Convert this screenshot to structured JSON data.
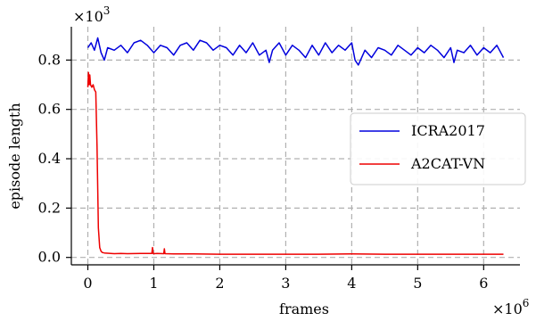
{
  "chart_data": {
    "type": "line",
    "xlabel": "frames",
    "ylabel": "episode length",
    "x_multiplier": "×10",
    "x_exponent": "6",
    "y_multiplier": "×10",
    "y_exponent": "3",
    "xlim": [
      -0.25,
      6.55
    ],
    "ylim": [
      -0.03,
      0.935
    ],
    "x_ticks": [
      0,
      1,
      2,
      3,
      4,
      5,
      6
    ],
    "y_ticks": [
      0.0,
      0.2,
      0.4,
      0.6,
      0.8
    ],
    "x_tick_labels": [
      "0",
      "1",
      "2",
      "3",
      "4",
      "5",
      "6"
    ],
    "y_tick_labels": [
      "0.0",
      "0.2",
      "0.4",
      "0.6",
      "0.8"
    ],
    "grid": true,
    "legend_position": "right-center",
    "series": [
      {
        "name": "ICRA2017",
        "color": "#0000dd",
        "x": [
          0,
          0.05,
          0.1,
          0.15,
          0.2,
          0.25,
          0.3,
          0.4,
          0.5,
          0.6,
          0.7,
          0.8,
          0.9,
          1.0,
          1.1,
          1.2,
          1.3,
          1.4,
          1.5,
          1.6,
          1.7,
          1.8,
          1.9,
          2.0,
          2.1,
          2.2,
          2.3,
          2.4,
          2.5,
          2.6,
          2.7,
          2.75,
          2.8,
          2.9,
          3.0,
          3.1,
          3.2,
          3.3,
          3.4,
          3.5,
          3.6,
          3.7,
          3.8,
          3.9,
          4.0,
          4.05,
          4.1,
          4.2,
          4.3,
          4.4,
          4.5,
          4.6,
          4.7,
          4.8,
          4.9,
          5.0,
          5.1,
          5.2,
          5.3,
          5.4,
          5.5,
          5.55,
          5.6,
          5.7,
          5.8,
          5.9,
          6.0,
          6.1,
          6.2,
          6.3
        ],
        "y": [
          0.85,
          0.87,
          0.84,
          0.89,
          0.83,
          0.8,
          0.85,
          0.84,
          0.86,
          0.83,
          0.87,
          0.88,
          0.86,
          0.83,
          0.86,
          0.85,
          0.82,
          0.86,
          0.87,
          0.84,
          0.88,
          0.87,
          0.84,
          0.86,
          0.85,
          0.82,
          0.86,
          0.83,
          0.87,
          0.82,
          0.84,
          0.79,
          0.84,
          0.87,
          0.82,
          0.86,
          0.84,
          0.81,
          0.86,
          0.82,
          0.87,
          0.83,
          0.86,
          0.84,
          0.87,
          0.8,
          0.78,
          0.84,
          0.81,
          0.85,
          0.84,
          0.82,
          0.86,
          0.84,
          0.82,
          0.85,
          0.83,
          0.86,
          0.84,
          0.81,
          0.85,
          0.79,
          0.84,
          0.83,
          0.86,
          0.82,
          0.85,
          0.83,
          0.86,
          0.81
        ]
      },
      {
        "name": "A2CAT-VN",
        "color": "#ee0000",
        "x": [
          0,
          0.01,
          0.02,
          0.03,
          0.04,
          0.06,
          0.08,
          0.1,
          0.12,
          0.14,
          0.16,
          0.18,
          0.2,
          0.22,
          0.25,
          0.3,
          0.4,
          0.5,
          0.6,
          0.8,
          0.97,
          0.98,
          0.99,
          1.0,
          1.05,
          1.15,
          1.16,
          1.17,
          1.3,
          1.6,
          2.0,
          2.5,
          3.0,
          3.5,
          4.0,
          4.5,
          5.0,
          5.5,
          6.0,
          6.3
        ],
        "y": [
          0.69,
          0.75,
          0.7,
          0.74,
          0.7,
          0.69,
          0.7,
          0.68,
          0.67,
          0.45,
          0.12,
          0.04,
          0.025,
          0.02,
          0.018,
          0.017,
          0.015,
          0.016,
          0.015,
          0.016,
          0.016,
          0.04,
          0.016,
          0.015,
          0.016,
          0.015,
          0.035,
          0.015,
          0.014,
          0.014,
          0.013,
          0.013,
          0.013,
          0.013,
          0.014,
          0.013,
          0.013,
          0.013,
          0.013,
          0.013
        ]
      }
    ]
  }
}
